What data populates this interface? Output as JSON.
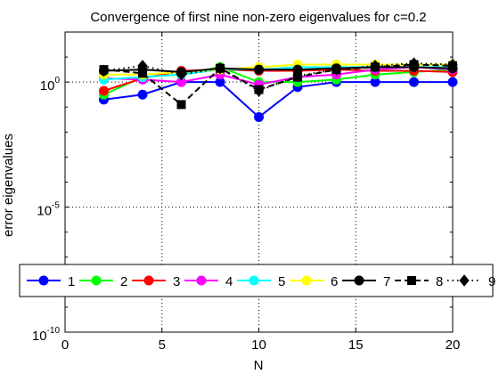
{
  "chart_data": {
    "type": "line",
    "title": "Convergence of first nine non-zero eigenvalues for c=0.2",
    "xlabel": "N",
    "ylabel": "error eigenvalues",
    "xlim": [
      0,
      20
    ],
    "ylim_log10": [
      -10,
      2
    ],
    "yscale": "log",
    "grid": true,
    "grid_style": "dotted",
    "xticks": [
      0,
      5,
      10,
      15,
      20
    ],
    "xtick_labels": [
      "0",
      "5",
      "10",
      "15",
      "20"
    ],
    "yticks_log10": [
      0,
      -5,
      -10
    ],
    "ytick_labels": [
      {
        "base": "10",
        "exp": "0"
      },
      {
        "base": "10",
        "exp": "-5"
      },
      {
        "base": "10",
        "exp": "-10"
      }
    ],
    "legend_position": "bottom, horizontal",
    "x": [
      2,
      4,
      6,
      8,
      10,
      12,
      14,
      16,
      18,
      20
    ],
    "series": [
      {
        "name": "1",
        "color": "#0000ff",
        "linestyle": "solid",
        "marker": "circle",
        "log10_values": [
          -0.7,
          -0.5,
          0.0,
          0.0,
          -1.4,
          -0.2,
          0.0,
          0.0,
          0.0,
          0.0
        ]
      },
      {
        "name": "2",
        "color": "#00ff00",
        "linestyle": "solid",
        "marker": "circle",
        "log10_values": [
          -0.5,
          0.2,
          0.3,
          0.6,
          0.0,
          0.0,
          0.1,
          0.3,
          0.4,
          0.5
        ]
      },
      {
        "name": "3",
        "color": "#ff0000",
        "linestyle": "solid",
        "marker": "circle",
        "log10_values": [
          -0.35,
          0.15,
          0.45,
          0.5,
          0.45,
          0.45,
          0.5,
          0.45,
          0.45,
          0.4
        ]
      },
      {
        "name": "4",
        "color": "#ff00ff",
        "linestyle": "solid",
        "marker": "circle",
        "log10_values": [
          0.15,
          0.1,
          0.0,
          0.3,
          -0.1,
          0.2,
          0.3,
          0.5,
          0.6,
          0.5
        ]
      },
      {
        "name": "5",
        "color": "#00ffff",
        "linestyle": "solid",
        "marker": "circle",
        "log10_values": [
          0.1,
          0.2,
          0.3,
          0.5,
          0.5,
          0.6,
          0.6,
          0.6,
          0.6,
          0.6
        ]
      },
      {
        "name": "6",
        "color": "#ffff00",
        "linestyle": "solid",
        "marker": "circle",
        "log10_values": [
          0.3,
          0.3,
          0.4,
          0.5,
          0.6,
          0.7,
          0.7,
          0.7,
          0.7,
          0.7
        ]
      },
      {
        "name": "7",
        "color": "#000000",
        "linestyle": "solid",
        "marker": "circle",
        "log10_values": [
          0.45,
          0.5,
          0.4,
          0.55,
          0.5,
          0.5,
          0.55,
          0.6,
          0.6,
          0.55
        ]
      },
      {
        "name": "8",
        "color": "#000000",
        "linestyle": "dashed",
        "marker": "square",
        "log10_values": [
          0.5,
          0.35,
          -0.9,
          0.55,
          -0.3,
          0.2,
          0.5,
          0.6,
          0.7,
          0.65
        ]
      },
      {
        "name": "9",
        "color": "#000000",
        "linestyle": "dotted",
        "marker": "diamond",
        "log10_values": [
          0.45,
          0.65,
          0.3,
          0.55,
          -0.35,
          0.25,
          0.5,
          0.65,
          0.75,
          0.7
        ]
      }
    ]
  }
}
